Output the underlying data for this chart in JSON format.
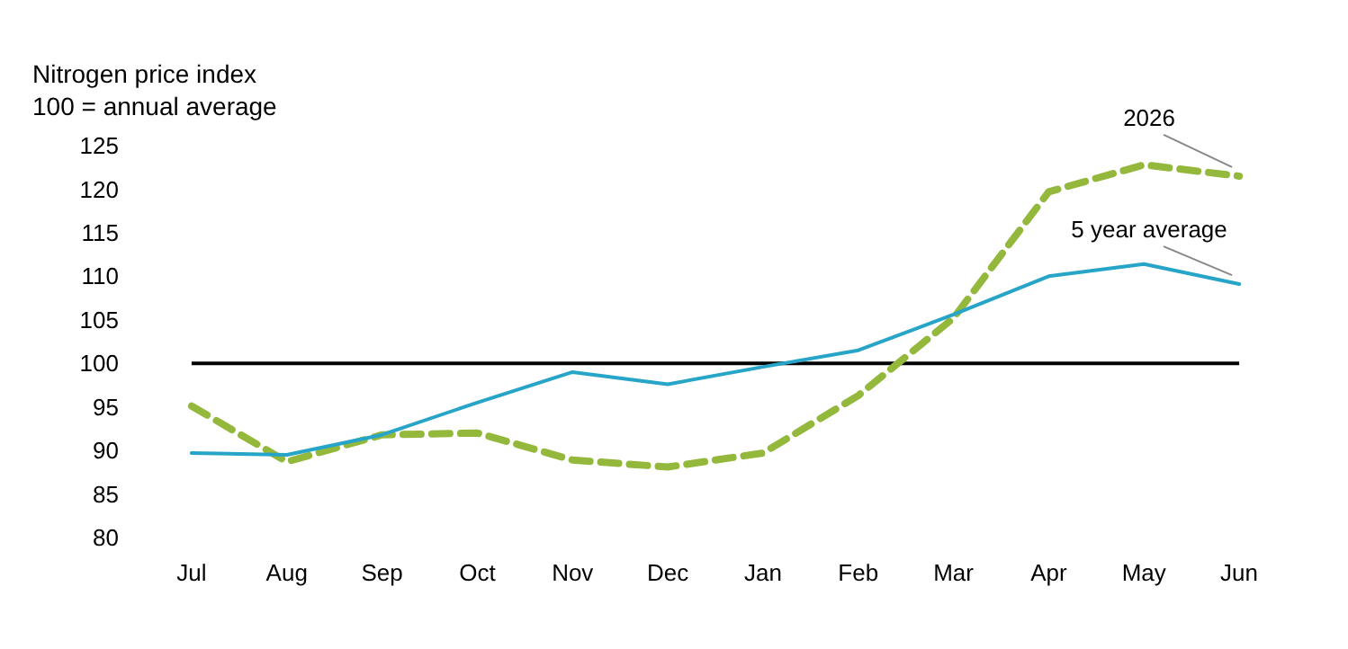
{
  "chart_data": {
    "type": "line",
    "title": "Nitrogen price index",
    "subtitle": "100 = annual average",
    "categories": [
      "Jul",
      "Aug",
      "Sep",
      "Oct",
      "Nov",
      "Dec",
      "Jan",
      "Feb",
      "Mar",
      "Apr",
      "May",
      "Jun"
    ],
    "series": [
      {
        "name": "2026",
        "color": "#93b83c",
        "line_style": "dashed",
        "values": [
          95.1,
          88.7,
          91.8,
          92,
          88.9,
          88.1,
          89.7,
          96.3,
          105.2,
          119.7,
          122.8,
          121.5
        ]
      },
      {
        "name": "5 year average",
        "color": "#27a5c8",
        "line_style": "solid",
        "values": [
          89.7,
          89.5,
          91.8,
          95.5,
          99,
          97.6,
          99.6,
          101.5,
          105.6,
          110,
          111.4,
          109.1
        ]
      }
    ],
    "ylim": [
      80,
      125
    ],
    "yticks": [
      80,
      85,
      90,
      95,
      100,
      105,
      110,
      115,
      120,
      125
    ],
    "ref_lines": [
      {
        "axis": "y",
        "value": 100,
        "color": "#000000"
      }
    ],
    "grid": false,
    "marker": "none"
  }
}
